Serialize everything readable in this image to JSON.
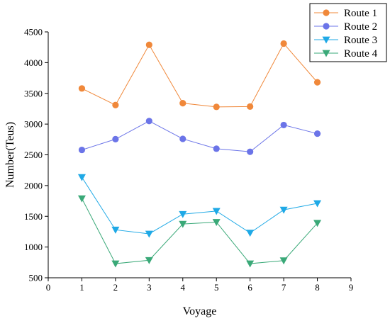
{
  "chart_data": {
    "type": "line",
    "xlabel": "Voyage",
    "ylabel": "Number(Teus)",
    "xlim": [
      0,
      9
    ],
    "ylim": [
      500,
      4500
    ],
    "x_ticks": [
      0,
      1,
      2,
      3,
      4,
      5,
      6,
      7,
      8,
      9
    ],
    "y_ticks": [
      500,
      1000,
      1500,
      2000,
      2500,
      3000,
      3500,
      4000,
      4500
    ],
    "grid": false,
    "legend_position": "top-right",
    "x": [
      1,
      2,
      3,
      4,
      5,
      6,
      7,
      8
    ],
    "series": [
      {
        "name": "Route 1",
        "color": "#f0883a",
        "marker": "circle",
        "values": [
          3580,
          3310,
          4290,
          3340,
          3280,
          3285,
          4310,
          3680
        ]
      },
      {
        "name": "Route 2",
        "color": "#6b74e8",
        "marker": "circle",
        "values": [
          2580,
          2755,
          3050,
          2760,
          2600,
          2550,
          2985,
          2845
        ]
      },
      {
        "name": "Route 3",
        "color": "#1fa9e6",
        "marker": "triangle-down",
        "values": [
          2135,
          1280,
          1215,
          1535,
          1585,
          1230,
          1605,
          1710
        ]
      },
      {
        "name": "Route 4",
        "color": "#3aa978",
        "marker": "triangle-down",
        "values": [
          1790,
          730,
          785,
          1375,
          1405,
          730,
          780,
          1390
        ]
      }
    ]
  }
}
